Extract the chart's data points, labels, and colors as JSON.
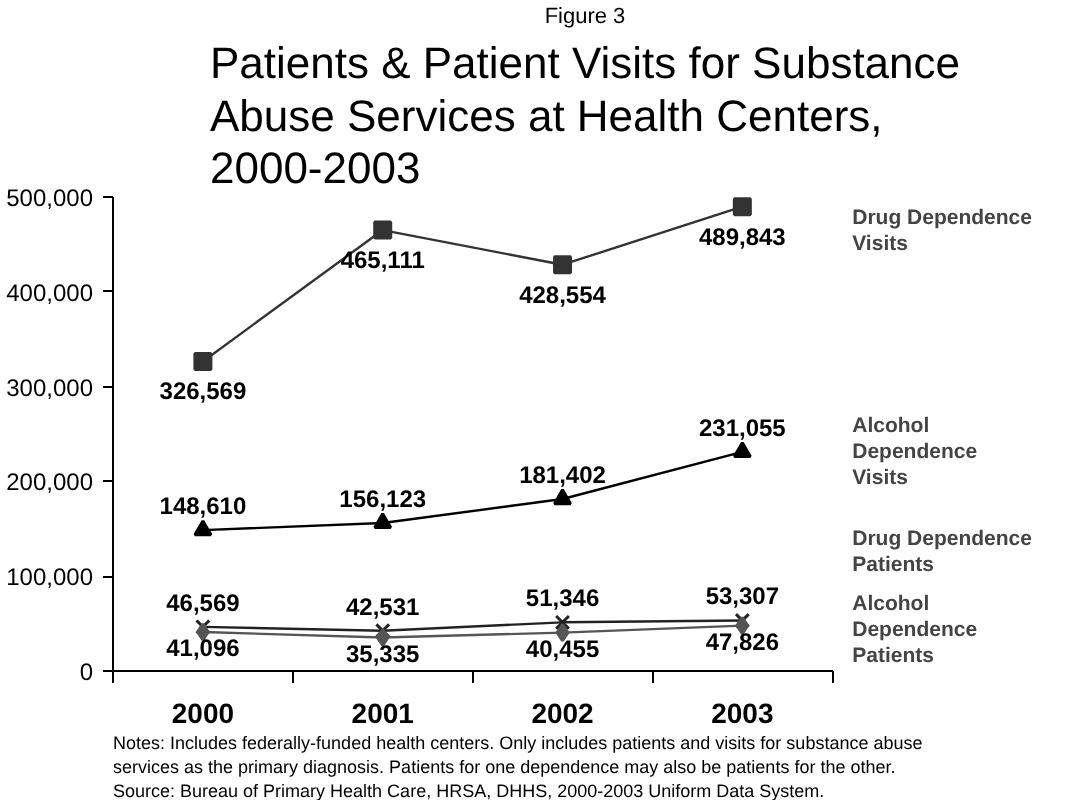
{
  "chart_data": {
    "type": "line",
    "subtitle": "Figure 3",
    "title": "Patients & Patient Visits for Substance Abuse Services at Health Centers, 2000-2003",
    "categories": [
      "2000",
      "2001",
      "2002",
      "2003"
    ],
    "series": [
      {
        "name": "Drug Dependence Visits",
        "color": "#333333",
        "marker": "square",
        "values": [
          326569,
          465111,
          428554,
          489843
        ],
        "value_labels": [
          "326,569",
          "465,111",
          "428,554",
          "489,843"
        ]
      },
      {
        "name": "Alcohol Dependence Visits",
        "color": "#000000",
        "marker": "triangle",
        "values": [
          148610,
          156123,
          181402,
          231055
        ],
        "value_labels": [
          "148,610",
          "156,123",
          "181,402",
          "231,055"
        ]
      },
      {
        "name": "Drug Dependence Patients",
        "color": "#222222",
        "marker": "cross",
        "values": [
          46569,
          42531,
          51346,
          53307
        ],
        "value_labels": [
          "46,569",
          "42,531",
          "51,346",
          "53,307"
        ]
      },
      {
        "name": "Alcohol Dependence Patients",
        "color": "#555555",
        "marker": "diamond",
        "values": [
          41096,
          35335,
          40455,
          47826
        ],
        "value_labels": [
          "41,096",
          "35,335",
          "40,455",
          "47,826"
        ]
      }
    ],
    "ylim": [
      0,
      500000
    ],
    "yticks": [
      {
        "value": 0,
        "label": "0"
      },
      {
        "value": 100000,
        "label": "100,000"
      },
      {
        "value": 200000,
        "label": "200,000"
      },
      {
        "value": 300000,
        "label": "300,000"
      },
      {
        "value": 400000,
        "label": "400,000"
      },
      {
        "value": 500000,
        "label": "500,000"
      }
    ],
    "grid": false,
    "annotations": [
      "Notes:  Includes federally-funded health centers. Only includes patients and visits for substance abuse services as the primary diagnosis.  Patients for one dependence may also be patients for the other.",
      "Source:  Bureau of Primary Health Care, HRSA, DHHS, 2000-2003 Uniform Data System."
    ]
  }
}
